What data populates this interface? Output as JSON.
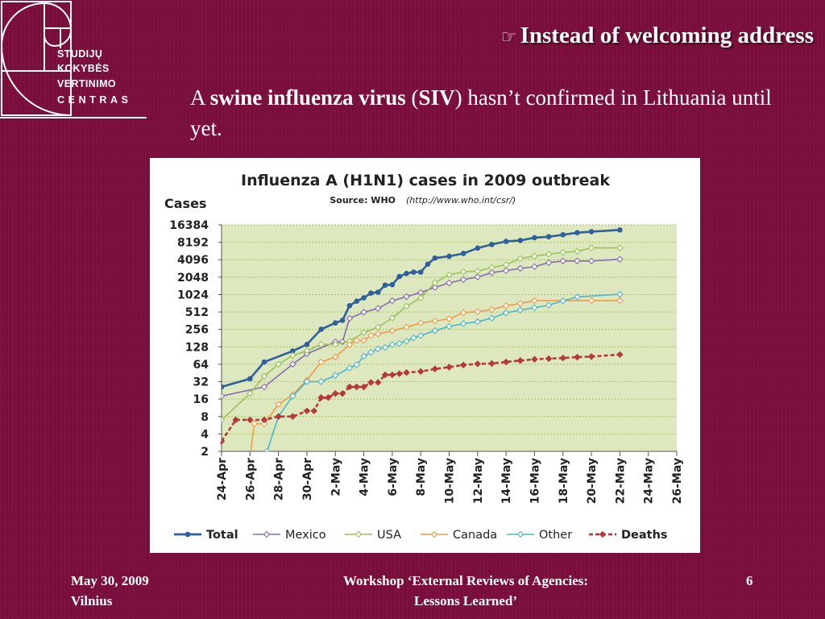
{
  "logo": {
    "lines": [
      "STUDIJŲ",
      "KOKYBĖS",
      "VERTINIMO",
      "CENTRAS"
    ]
  },
  "slide": {
    "title": "Instead of welcoming address",
    "intro": {
      "part1": "A ",
      "bold1": "swine influenza virus",
      "part2": " (",
      "bold2": "SIV",
      "part3": ") hasn’t confirmed in Lithuania until yet."
    }
  },
  "footer": {
    "date": "May 30, 2009",
    "place": "Vilnius",
    "center_line1": "Workshop ‘External Reviews of Agencies:",
    "center_line2": "Lessons Learned’",
    "page": "6"
  },
  "colors": {
    "background": "#7a0f3e",
    "plot_area": "#dde8be",
    "grid": "#a8c060",
    "total": "#2f5f9f",
    "mexico": "#8a6cb0",
    "usa": "#98c35a",
    "canada": "#ef9a4a",
    "other": "#4fb5c8",
    "deaths": "#b23a3a"
  },
  "chart_data": {
    "type": "line",
    "title": "Influenza A (H1N1) cases in 2009 outbreak",
    "source_label": "Source: WHO",
    "source_url": "(http://www.who.int/csr/)",
    "ylabel": "Cases",
    "y_scale": "log2",
    "ylim": [
      2,
      16384
    ],
    "y_ticks": [
      2,
      4,
      8,
      16,
      32,
      64,
      128,
      256,
      512,
      1024,
      2048,
      4096,
      8192,
      16384
    ],
    "xlim": [
      0,
      32
    ],
    "x_ticks": [
      "24-Apr",
      "26-Apr",
      "28-Apr",
      "30-Apr",
      "2-May",
      "4-May",
      "6-May",
      "8-May",
      "10-May",
      "12-May",
      "14-May",
      "16-May",
      "18-May",
      "20-May",
      "22-May",
      "24-May",
      "26-May"
    ],
    "grid": true,
    "legend_position": "bottom",
    "series": [
      {
        "name": "Total",
        "key": "total",
        "bold": true,
        "dashed": false,
        "points": [
          [
            0,
            26
          ],
          [
            2,
            36
          ],
          [
            3,
            70
          ],
          [
            5,
            108
          ],
          [
            6,
            141
          ],
          [
            7,
            257
          ],
          [
            8,
            331
          ],
          [
            8.5,
            367
          ],
          [
            9,
            658
          ],
          [
            9.5,
            787
          ],
          [
            10,
            898
          ],
          [
            10.5,
            1085
          ],
          [
            11,
            1124
          ],
          [
            11.5,
            1490
          ],
          [
            12,
            1516
          ],
          [
            12.5,
            2099
          ],
          [
            13,
            2371
          ],
          [
            13.5,
            2500
          ],
          [
            14,
            2500
          ],
          [
            14.5,
            3440
          ],
          [
            15,
            4379
          ],
          [
            16,
            4694
          ],
          [
            17,
            5251
          ],
          [
            18,
            6497
          ],
          [
            19,
            7520
          ],
          [
            20,
            8480
          ],
          [
            21,
            8829
          ],
          [
            22,
            9830
          ],
          [
            23,
            10243
          ],
          [
            24,
            11034
          ],
          [
            25,
            12022
          ],
          [
            26,
            12515
          ],
          [
            28,
            13398
          ]
        ]
      },
      {
        "name": "Mexico",
        "key": "mexico",
        "bold": false,
        "dashed": false,
        "points": [
          [
            0,
            18
          ],
          [
            3,
            26
          ],
          [
            5,
            64
          ],
          [
            6,
            97
          ],
          [
            8,
            156
          ],
          [
            8.5,
            156
          ],
          [
            9,
            397
          ],
          [
            10,
            506
          ],
          [
            11,
            590
          ],
          [
            12,
            802
          ],
          [
            13,
            942
          ],
          [
            14,
            1112
          ],
          [
            15,
            1364
          ],
          [
            16,
            1626
          ],
          [
            17,
            1858
          ],
          [
            18,
            2059
          ],
          [
            19,
            2446
          ],
          [
            20,
            2656
          ],
          [
            21,
            2895
          ],
          [
            22,
            3103
          ],
          [
            23,
            3648
          ],
          [
            24,
            3892
          ],
          [
            25,
            3892
          ],
          [
            26,
            3892
          ],
          [
            28,
            4174
          ]
        ]
      },
      {
        "name": "USA",
        "key": "usa",
        "bold": false,
        "dashed": false,
        "points": [
          [
            0,
            7
          ],
          [
            2,
            20
          ],
          [
            3,
            40
          ],
          [
            4,
            64
          ],
          [
            5,
            91
          ],
          [
            6,
            109
          ],
          [
            7,
            141
          ],
          [
            8,
            141
          ],
          [
            9,
            160
          ],
          [
            10,
            226
          ],
          [
            11,
            279
          ],
          [
            12,
            403
          ],
          [
            13,
            642
          ],
          [
            14,
            896
          ],
          [
            15,
            1639
          ],
          [
            16,
            2254
          ],
          [
            17,
            2532
          ],
          [
            18,
            2600
          ],
          [
            19,
            3009
          ],
          [
            20,
            3352
          ],
          [
            21,
            4298
          ],
          [
            22,
            4714
          ],
          [
            23,
            5123
          ],
          [
            24,
            5469
          ],
          [
            25,
            5710
          ],
          [
            26,
            6552
          ],
          [
            28,
            6552
          ]
        ]
      },
      {
        "name": "Canada",
        "key": "canada",
        "bold": false,
        "dashed": false,
        "points": [
          [
            1.9,
            1
          ],
          [
            2.3,
            6
          ],
          [
            3,
            6
          ],
          [
            4,
            13
          ],
          [
            5,
            19
          ],
          [
            6,
            34
          ],
          [
            7,
            70
          ],
          [
            8,
            85
          ],
          [
            9,
            140
          ],
          [
            9.5,
            165
          ],
          [
            10,
            165
          ],
          [
            10.5,
            201
          ],
          [
            11,
            214
          ],
          [
            12,
            242
          ],
          [
            13,
            280
          ],
          [
            14,
            330
          ],
          [
            15,
            358
          ],
          [
            16,
            389
          ],
          [
            17,
            496
          ],
          [
            18,
            520
          ],
          [
            19,
            563
          ],
          [
            20,
            655
          ],
          [
            21,
            719
          ],
          [
            22,
            805
          ],
          [
            26,
            805
          ],
          [
            28,
            805
          ]
        ]
      },
      {
        "name": "Other",
        "key": "other",
        "bold": false,
        "dashed": false,
        "points": [
          [
            2.7,
            1
          ],
          [
            3.2,
            2
          ],
          [
            4,
            8
          ],
          [
            5,
            18
          ],
          [
            6,
            32
          ],
          [
            7,
            32
          ],
          [
            8,
            41
          ],
          [
            9,
            55
          ],
          [
            9.5,
            63
          ],
          [
            10,
            88
          ],
          [
            10.5,
            103
          ],
          [
            11,
            118
          ],
          [
            11.5,
            125
          ],
          [
            12,
            140
          ],
          [
            12.5,
            147
          ],
          [
            13,
            160
          ],
          [
            13.5,
            183
          ],
          [
            14,
            200
          ],
          [
            15,
            244
          ],
          [
            16,
            288
          ],
          [
            17,
            322
          ],
          [
            18,
            347
          ],
          [
            19,
            401
          ],
          [
            20,
            494
          ],
          [
            21,
            551
          ],
          [
            22,
            608
          ],
          [
            23,
            671
          ],
          [
            24,
            798
          ],
          [
            25,
            931
          ],
          [
            28,
            1038
          ]
        ]
      },
      {
        "name": "Deaths",
        "key": "deaths",
        "bold": true,
        "dashed": true,
        "points": [
          [
            0,
            3
          ],
          [
            1,
            7
          ],
          [
            2,
            7
          ],
          [
            3,
            7
          ],
          [
            4,
            8
          ],
          [
            5,
            8
          ],
          [
            6,
            10
          ],
          [
            6.5,
            10
          ],
          [
            7,
            17
          ],
          [
            7.5,
            17
          ],
          [
            8,
            20
          ],
          [
            8.5,
            20
          ],
          [
            9,
            26
          ],
          [
            9.5,
            26
          ],
          [
            10,
            26
          ],
          [
            10.5,
            31
          ],
          [
            11,
            31
          ],
          [
            11.5,
            42
          ],
          [
            12,
            42
          ],
          [
            12.5,
            44
          ],
          [
            13,
            46
          ],
          [
            14,
            48
          ],
          [
            15,
            53
          ],
          [
            16,
            57
          ],
          [
            17,
            62
          ],
          [
            18,
            65
          ],
          [
            19,
            66
          ],
          [
            20,
            70
          ],
          [
            21,
            74
          ],
          [
            22,
            78
          ],
          [
            23,
            80
          ],
          [
            24,
            82
          ],
          [
            25,
            85
          ],
          [
            26,
            87
          ],
          [
            28,
            94
          ]
        ]
      }
    ]
  }
}
